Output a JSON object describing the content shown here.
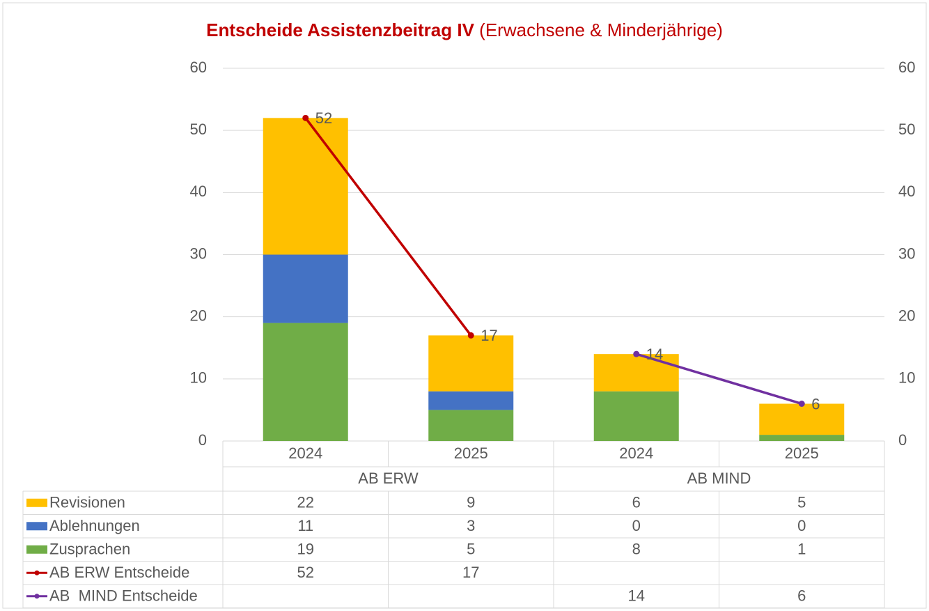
{
  "chart_data": {
    "type": "bar",
    "stacked": true,
    "title": "Entscheide Assistenzbeitrag IV",
    "subtitle": "(Erwachsene & Minderjährige)",
    "categories": [
      "2024",
      "2025",
      "2024",
      "2025"
    ],
    "groups": [
      "AB ERW",
      "AB MIND"
    ],
    "series": [
      {
        "name": "Zusprachen",
        "type": "bar",
        "color": "#70ad47",
        "values": [
          19,
          5,
          8,
          1
        ]
      },
      {
        "name": "Ablehnungen",
        "type": "bar",
        "color": "#4472c4",
        "values": [
          11,
          3,
          0,
          0
        ]
      },
      {
        "name": "Revisionen",
        "type": "bar",
        "color": "#ffc000",
        "values": [
          22,
          9,
          6,
          5
        ]
      },
      {
        "name": "AB ERW Entscheide",
        "type": "line",
        "color": "#c00000",
        "values": [
          52,
          17,
          null,
          null
        ]
      },
      {
        "name": "AB  MIND Entscheide",
        "type": "line",
        "color": "#7030a0",
        "values": [
          null,
          null,
          14,
          6
        ]
      }
    ],
    "ylim": [
      0,
      60
    ],
    "yticks": [
      0,
      10,
      20,
      30,
      40,
      50,
      60
    ],
    "y2lim": [
      0,
      60
    ],
    "y2ticks": [
      0,
      10,
      20,
      30,
      40,
      50,
      60
    ],
    "grid": true,
    "data_table": true
  }
}
